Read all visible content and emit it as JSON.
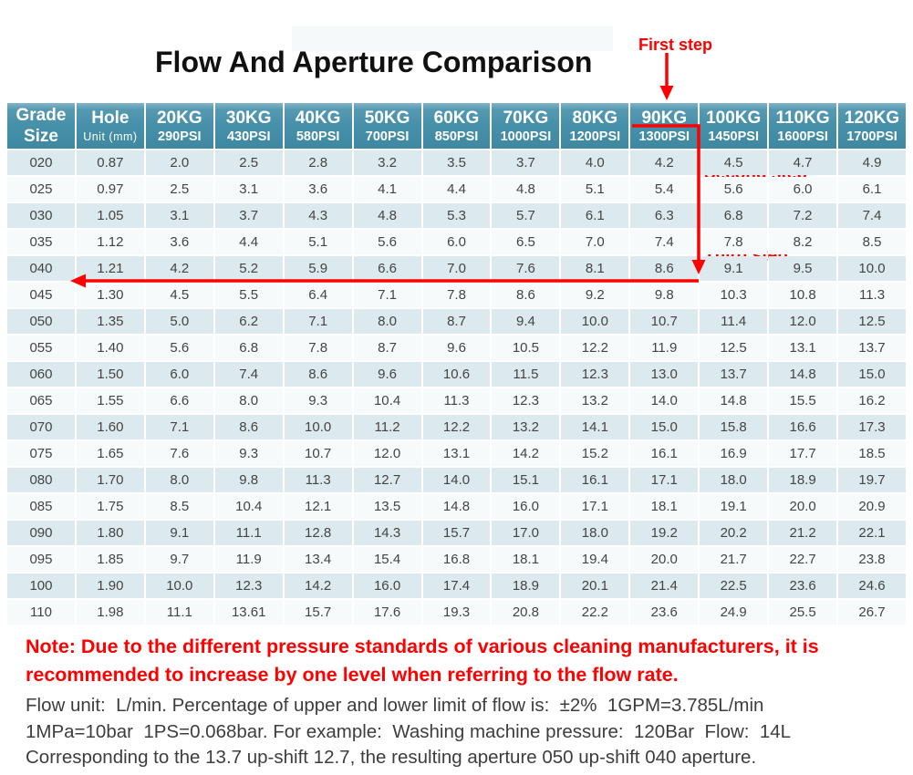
{
  "title": "Flow And Aperture Comparison",
  "annotations": {
    "first_step": "First step",
    "second_step": "Second step",
    "third_step": "Third step"
  },
  "colors": {
    "accent_red": "#fe0000",
    "header_teal": "#4690aa",
    "row_blue": "#dceaef",
    "row_white": "#f6fafb"
  },
  "table": {
    "header": [
      {
        "line1": "Grade",
        "line2": "Size"
      },
      {
        "line1": "Hole",
        "line2": "Unit (mm)"
      },
      {
        "line1": "20KG",
        "line2": "290PSI"
      },
      {
        "line1": "30KG",
        "line2": "430PSI"
      },
      {
        "line1": "40KG",
        "line2": "580PSI"
      },
      {
        "line1": "50KG",
        "line2": "700PSI"
      },
      {
        "line1": "60KG",
        "line2": "850PSI"
      },
      {
        "line1": "70KG",
        "line2": "1000PSI"
      },
      {
        "line1": "80KG",
        "line2": "1200PSI"
      },
      {
        "line1": "90KG",
        "line2": "1300PSI"
      },
      {
        "line1": "100KG",
        "line2": "1450PSI"
      },
      {
        "line1": "110KG",
        "line2": "1600PSI"
      },
      {
        "line1": "120KG",
        "line2": "1700PSI"
      }
    ],
    "rows": [
      {
        "grade": "020",
        "values": [
          "0.87",
          "2.0",
          "2.5",
          "2.8",
          "3.2",
          "3.5",
          "3.7",
          "4.0",
          "4.2",
          "4.5",
          "4.7",
          "4.9"
        ]
      },
      {
        "grade": "025",
        "values": [
          "0.97",
          "2.5",
          "3.1",
          "3.6",
          "4.1",
          "4.4",
          "4.8",
          "5.1",
          "5.4",
          "5.6",
          "6.0",
          "6.1"
        ]
      },
      {
        "grade": "030",
        "values": [
          "1.05",
          "3.1",
          "3.7",
          "4.3",
          "4.8",
          "5.3",
          "5.7",
          "6.1",
          "6.3",
          "6.8",
          "7.2",
          "7.4"
        ]
      },
      {
        "grade": "035",
        "values": [
          "1.12",
          "3.6",
          "4.4",
          "5.1",
          "5.6",
          "6.0",
          "6.5",
          "7.0",
          "7.4",
          "7.8",
          "8.2",
          "8.5"
        ]
      },
      {
        "grade": "040",
        "values": [
          "1.21",
          "4.2",
          "5.2",
          "5.9",
          "6.6",
          "7.0",
          "7.6",
          "8.1",
          "8.6",
          "9.1",
          "9.5",
          "10.0"
        ]
      },
      {
        "grade": "045",
        "values": [
          "1.30",
          "4.5",
          "5.5",
          "6.4",
          "7.1",
          "7.8",
          "8.6",
          "9.2",
          "9.8",
          "10.3",
          "10.8",
          "11.3"
        ]
      },
      {
        "grade": "050",
        "values": [
          "1.35",
          "5.0",
          "6.2",
          "7.1",
          "8.0",
          "8.7",
          "9.4",
          "10.0",
          "10.7",
          "11.4",
          "12.0",
          "12.5"
        ]
      },
      {
        "grade": "055",
        "values": [
          "1.40",
          "5.6",
          "6.8",
          "7.8",
          "8.7",
          "9.6",
          "10.5",
          "12.2",
          "11.9",
          "12.5",
          "13.1",
          "13.7"
        ]
      },
      {
        "grade": "060",
        "values": [
          "1.50",
          "6.0",
          "7.4",
          "8.6",
          "9.6",
          "10.6",
          "11.5",
          "12.3",
          "13.0",
          "13.7",
          "14.8",
          "15.0"
        ]
      },
      {
        "grade": "065",
        "values": [
          "1.55",
          "6.6",
          "8.0",
          "9.3",
          "10.4",
          "11.3",
          "12.3",
          "13.2",
          "14.0",
          "14.8",
          "15.5",
          "16.2"
        ]
      },
      {
        "grade": "070",
        "values": [
          "1.60",
          "7.1",
          "8.6",
          "10.0",
          "11.2",
          "12.2",
          "13.2",
          "14.1",
          "15.0",
          "15.8",
          "16.6",
          "17.3"
        ]
      },
      {
        "grade": "075",
        "values": [
          "1.65",
          "7.6",
          "9.3",
          "10.7",
          "12.0",
          "13.1",
          "14.2",
          "15.2",
          "16.1",
          "16.9",
          "17.7",
          "18.5"
        ]
      },
      {
        "grade": "080",
        "values": [
          "1.70",
          "8.0",
          "9.8",
          "11.3",
          "12.7",
          "14.0",
          "15.1",
          "16.1",
          "17.1",
          "18.0",
          "18.9",
          "19.7"
        ]
      },
      {
        "grade": "085",
        "values": [
          "1.75",
          "8.5",
          "10.4",
          "12.1",
          "13.5",
          "14.8",
          "16.0",
          "17.1",
          "18.1",
          "19.1",
          "20.0",
          "20.9"
        ]
      },
      {
        "grade": "090",
        "values": [
          "1.80",
          "9.1",
          "11.1",
          "12.8",
          "14.3",
          "15.7",
          "17.0",
          "18.0",
          "19.2",
          "20.2",
          "21.2",
          "22.1"
        ]
      },
      {
        "grade": "095",
        "values": [
          "1.85",
          "9.7",
          "11.9",
          "13.4",
          "15.4",
          "16.8",
          "18.1",
          "19.4",
          "20.0",
          "21.7",
          "22.7",
          "23.8"
        ]
      },
      {
        "grade": "100",
        "values": [
          "1.90",
          "10.0",
          "12.3",
          "14.2",
          "16.0",
          "17.4",
          "18.9",
          "20.1",
          "21.4",
          "22.5",
          "23.6",
          "24.6"
        ]
      },
      {
        "grade": "110",
        "values": [
          "1.98",
          "11.1",
          "13.61",
          "15.7",
          "17.6",
          "19.3",
          "20.8",
          "22.2",
          "23.6",
          "24.9",
          "25.5",
          "26.7"
        ]
      }
    ]
  },
  "note": "Note: Due to the different pressure standards of various cleaning manufacturers, it is recommended to increase by one level when referring to the flow rate.",
  "info_lines": [
    "Flow unit:  L/min. Percentage of upper and lower limit of flow is:  ±2%  1GPM=3.785L/min",
    "1MPa=10bar  1PS=0.068bar. For example:  Washing machine pressure:  120Bar  Flow:  14L",
    "Corresponding to the 13.7 up-shift 12.7, the resulting aperture 050 up-shift 040 aperture."
  ]
}
